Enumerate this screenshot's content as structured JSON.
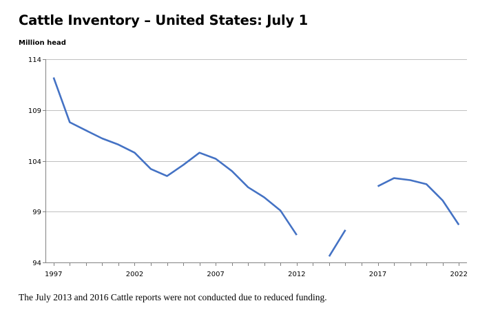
{
  "chart_data": {
    "type": "line",
    "title": "Cattle Inventory – United States: July 1",
    "ylabel": "Million head",
    "xlabel": "",
    "xlim": [
      1996.5,
      2022.5
    ],
    "ylim": [
      94,
      114
    ],
    "yticks": [
      94,
      99,
      104,
      109,
      114
    ],
    "xticks": [
      1997,
      2002,
      2007,
      2012,
      2017,
      2022
    ],
    "grid": true,
    "legend": "none",
    "colors": {
      "line": "#4472c4",
      "grid": "#bfbfbf",
      "axis": "#808080"
    },
    "series": [
      {
        "x": [
          1997,
          1998,
          1999,
          2000,
          2001,
          2002,
          2003,
          2004,
          2005,
          2006,
          2007,
          2008,
          2009,
          2010,
          2011,
          2012,
          2013,
          2014,
          2015,
          2016,
          2017,
          2018,
          2019,
          2020,
          2021,
          2022
        ],
        "values": [
          112.2,
          107.8,
          107.0,
          106.2,
          105.6,
          104.8,
          103.2,
          102.5,
          103.6,
          104.8,
          104.2,
          103.0,
          101.4,
          100.4,
          99.1,
          96.7,
          null,
          94.6,
          97.2,
          null,
          101.5,
          102.3,
          102.1,
          101.7,
          100.1,
          97.7
        ]
      }
    ],
    "footnote": "The July 2013 and 2016 Cattle reports were not conducted due to reduced funding."
  }
}
